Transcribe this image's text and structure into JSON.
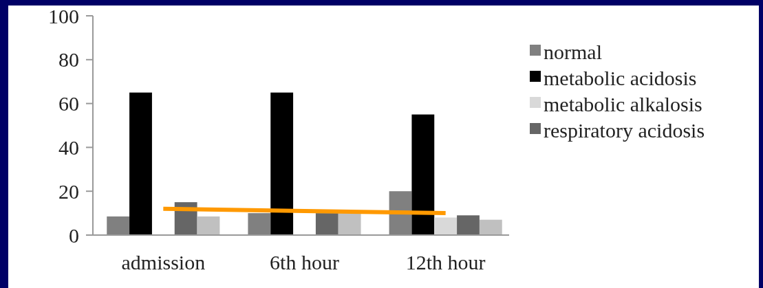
{
  "chart_data": {
    "type": "bar",
    "categories": [
      "admission",
      "6th hour",
      "12th hour"
    ],
    "series": [
      {
        "name": "normal",
        "color": "#808080",
        "values": [
          8.5,
          10,
          20
        ]
      },
      {
        "name": "metabolic acidosis",
        "color": "#000000",
        "values": [
          65,
          65,
          55
        ]
      },
      {
        "name": "metabolic alkalosis",
        "color": "#d9d9d9",
        "values": [
          0,
          0,
          8
        ]
      },
      {
        "name": "respiratory acidosis",
        "color": "#666666",
        "values": [
          15,
          10,
          9
        ]
      },
      {
        "color": "#c0c0c0",
        "values": [
          8.5,
          10,
          7
        ]
      },
      {
        "type": "line",
        "color": "#ff9900",
        "values": [
          12,
          11,
          10
        ],
        "marker": "none"
      }
    ],
    "ylim": [
      0,
      100
    ],
    "yticks": [
      0,
      20,
      40,
      60,
      80,
      100
    ],
    "grid": false,
    "legend": "right"
  }
}
